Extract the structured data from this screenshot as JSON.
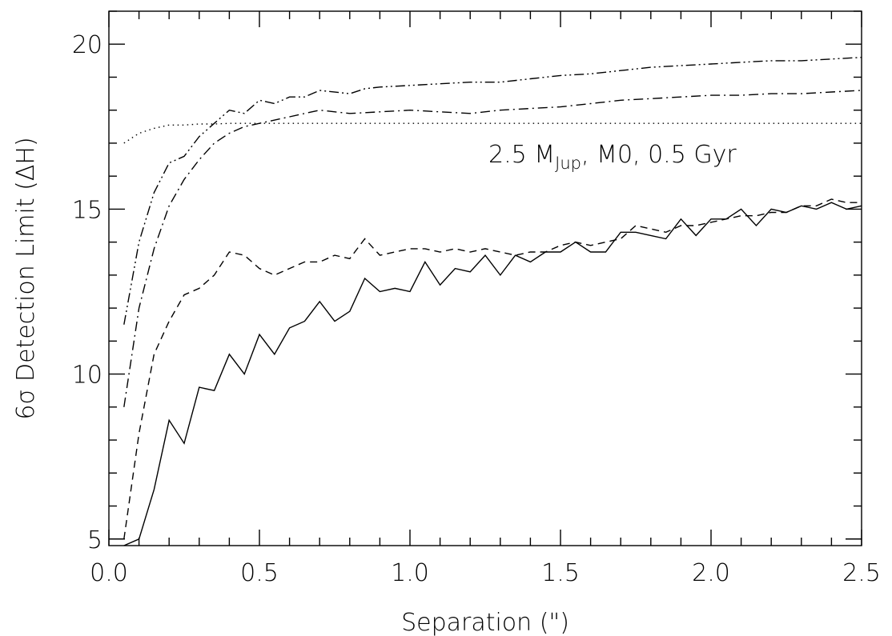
{
  "chart_data": {
    "type": "line",
    "xlabel": "Separation (\")",
    "ylabel": "6σ Detection Limit (ΔH)",
    "xlim": [
      0.0,
      2.5
    ],
    "ylim": [
      4.8,
      21.0
    ],
    "x_ticks": [
      "0.0",
      "0.5",
      "1.0",
      "1.5",
      "2.0",
      "2.5"
    ],
    "x_tick_values": [
      0.0,
      0.5,
      1.0,
      1.5,
      2.0,
      2.5
    ],
    "y_ticks": [
      "5",
      "10",
      "15",
      "20"
    ],
    "y_tick_values": [
      5,
      10,
      15,
      20
    ],
    "x_minor_step": 0.1,
    "y_minor_step": 1,
    "grid": false,
    "annotation": {
      "prefix": "2.5 M",
      "subscript": "Jup",
      "suffix": ", M0, 0.5 Gyr"
    },
    "series": [
      {
        "style": "solid",
        "x": [
          0.05,
          0.1,
          0.15,
          0.2,
          0.25,
          0.3,
          0.35,
          0.4,
          0.45,
          0.5,
          0.55,
          0.6,
          0.65,
          0.7,
          0.75,
          0.8,
          0.85,
          0.9,
          0.95,
          1.0,
          1.05,
          1.1,
          1.15,
          1.2,
          1.25,
          1.3,
          1.35,
          1.4,
          1.45,
          1.5,
          1.55,
          1.6,
          1.65,
          1.7,
          1.75,
          1.8,
          1.85,
          1.9,
          1.95,
          2.0,
          2.05,
          2.1,
          2.15,
          2.2,
          2.25,
          2.3,
          2.35,
          2.4,
          2.45,
          2.5
        ],
        "y": [
          3.9,
          5.0,
          6.5,
          8.6,
          7.9,
          9.6,
          9.5,
          10.6,
          10.0,
          11.2,
          10.6,
          11.4,
          11.6,
          12.2,
          11.6,
          11.9,
          12.9,
          12.5,
          12.6,
          12.5,
          13.4,
          12.7,
          13.2,
          13.1,
          13.6,
          13.0,
          13.6,
          13.4,
          13.7,
          13.7,
          14.0,
          13.7,
          13.7,
          14.3,
          14.3,
          14.2,
          14.1,
          14.7,
          14.2,
          14.7,
          14.7,
          15.0,
          14.5,
          15.0,
          14.9,
          15.1,
          15.0,
          15.2,
          15.0,
          15.1
        ]
      },
      {
        "style": "dashed",
        "x": [
          0.05,
          0.1,
          0.15,
          0.2,
          0.25,
          0.3,
          0.35,
          0.4,
          0.45,
          0.5,
          0.55,
          0.6,
          0.65,
          0.7,
          0.75,
          0.8,
          0.85,
          0.9,
          0.95,
          1.0,
          1.05,
          1.1,
          1.15,
          1.2,
          1.25,
          1.3,
          1.35,
          1.4,
          1.45,
          1.5,
          1.55,
          1.6,
          1.65,
          1.7,
          1.75,
          1.8,
          1.85,
          1.9,
          1.95,
          2.0,
          2.05,
          2.1,
          2.15,
          2.2,
          2.25,
          2.3,
          2.35,
          2.4,
          2.45,
          2.5
        ],
        "y": [
          5.0,
          8.2,
          10.6,
          11.6,
          12.4,
          12.6,
          13.0,
          13.7,
          13.6,
          13.2,
          13.0,
          13.2,
          13.4,
          13.4,
          13.6,
          13.5,
          14.1,
          13.6,
          13.7,
          13.8,
          13.8,
          13.7,
          13.8,
          13.7,
          13.8,
          13.7,
          13.6,
          13.7,
          13.7,
          13.9,
          14.0,
          13.9,
          14.0,
          14.1,
          14.5,
          14.4,
          14.3,
          14.5,
          14.5,
          14.6,
          14.7,
          14.8,
          14.8,
          14.9,
          14.9,
          15.1,
          15.1,
          15.3,
          15.2,
          15.2
        ]
      },
      {
        "style": "dash-dot",
        "x": [
          0.05,
          0.1,
          0.15,
          0.2,
          0.25,
          0.3,
          0.35,
          0.4,
          0.45,
          0.5,
          0.6,
          0.7,
          0.8,
          0.9,
          1.0,
          1.1,
          1.2,
          1.3,
          1.4,
          1.5,
          1.6,
          1.7,
          1.8,
          1.9,
          2.0,
          2.1,
          2.2,
          2.3,
          2.4,
          2.5
        ],
        "y": [
          9.0,
          12.0,
          13.8,
          15.1,
          15.9,
          16.5,
          17.0,
          17.3,
          17.5,
          17.6,
          17.8,
          18.0,
          17.9,
          17.95,
          18.0,
          17.95,
          17.9,
          18.0,
          18.05,
          18.1,
          18.2,
          18.3,
          18.35,
          18.4,
          18.45,
          18.45,
          18.5,
          18.5,
          18.55,
          18.6
        ]
      },
      {
        "style": "dash-dot-dot",
        "x": [
          0.05,
          0.1,
          0.15,
          0.2,
          0.25,
          0.3,
          0.35,
          0.4,
          0.45,
          0.5,
          0.55,
          0.6,
          0.65,
          0.7,
          0.8,
          0.85,
          0.9,
          1.0,
          1.1,
          1.2,
          1.3,
          1.4,
          1.5,
          1.6,
          1.7,
          1.8,
          1.9,
          2.0,
          2.1,
          2.2,
          2.3,
          2.4,
          2.5
        ],
        "y": [
          11.5,
          14.0,
          15.5,
          16.4,
          16.6,
          17.2,
          17.6,
          18.0,
          17.9,
          18.3,
          18.2,
          18.4,
          18.4,
          18.6,
          18.5,
          18.65,
          18.7,
          18.75,
          18.8,
          18.85,
          18.85,
          18.95,
          19.05,
          19.1,
          19.2,
          19.3,
          19.35,
          19.4,
          19.45,
          19.5,
          19.5,
          19.55,
          19.6
        ]
      },
      {
        "style": "dotted",
        "x": [
          0.05,
          0.1,
          0.15,
          0.2,
          0.25,
          0.3,
          0.35,
          0.4,
          0.5,
          1.0,
          1.5,
          2.0,
          2.5
        ],
        "y": [
          17.0,
          17.3,
          17.45,
          17.55,
          17.55,
          17.58,
          17.58,
          17.6,
          17.6,
          17.6,
          17.6,
          17.6,
          17.6
        ]
      }
    ]
  }
}
